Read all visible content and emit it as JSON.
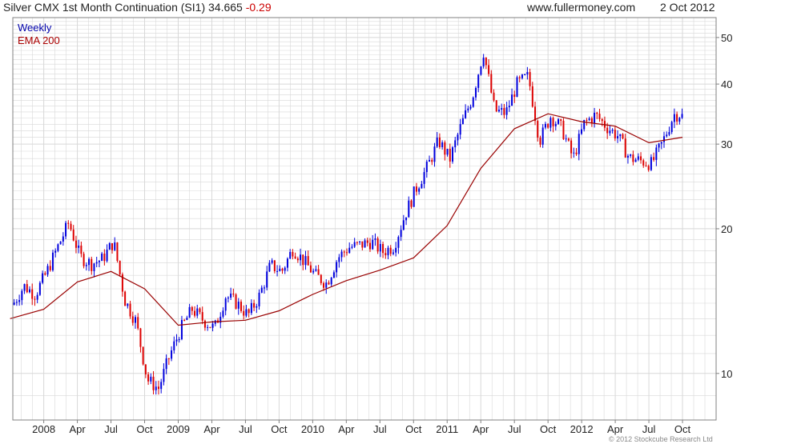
{
  "header": {
    "title": "Silver CMX 1st Month Continuation (SI1) 34.665",
    "change": "-0.29",
    "site": "www.fullermoney.com",
    "date": "2 Oct 2012"
  },
  "legend": {
    "interval": "Weekly",
    "ema": "EMA 200"
  },
  "credit": "© 2012 Stockcube Research Ltd",
  "colors": {
    "up": "#0000dd",
    "down": "#dd0000",
    "ema": "#990000",
    "grid": "#d8d8d8",
    "frame": "#808080"
  },
  "chart_data": {
    "type": "candlestick",
    "interval": "weekly",
    "x_tick_labels": [
      "2008",
      "Apr",
      "Jul",
      "Oct",
      "2009",
      "Apr",
      "Jul",
      "Oct",
      "2010",
      "Apr",
      "Jul",
      "Oct",
      "2011",
      "Apr",
      "Jul",
      "Oct",
      "2012",
      "Apr",
      "Jul",
      "Oct"
    ],
    "x_tick_dates": [
      "2008-01",
      "2008-04",
      "2008-07",
      "2008-10",
      "2009-01",
      "2009-04",
      "2009-07",
      "2009-10",
      "2010-01",
      "2010-04",
      "2010-07",
      "2010-10",
      "2011-01",
      "2011-04",
      "2011-07",
      "2011-10",
      "2012-01",
      "2012-04",
      "2012-07",
      "2012-10"
    ],
    "y_axis": {
      "position": "right",
      "scale": "log",
      "ylim": [
        8,
        55
      ],
      "ticks": [
        10,
        20,
        30,
        40,
        50
      ]
    },
    "grid": true,
    "legend_position": "top-left",
    "close_series": [
      [
        "2007-10",
        13.9
      ],
      [
        "2007-11",
        15.2
      ],
      [
        "2007-12",
        14.6
      ],
      [
        "2008-01",
        16.2
      ],
      [
        "2008-02",
        18.3
      ],
      [
        "2008-03",
        20.6
      ],
      [
        "2008-04",
        17.5
      ],
      [
        "2008-05",
        16.9
      ],
      [
        "2008-06",
        17.3
      ],
      [
        "2008-07",
        18.8
      ],
      [
        "2008-08",
        14.2
      ],
      [
        "2008-09",
        12.8
      ],
      [
        "2008-10",
        9.7
      ],
      [
        "2008-11",
        9.3
      ],
      [
        "2008-12",
        10.9
      ],
      [
        "2009-01",
        12.4
      ],
      [
        "2009-02",
        13.6
      ],
      [
        "2009-03",
        12.9
      ],
      [
        "2009-04",
        12.4
      ],
      [
        "2009-05",
        14.5
      ],
      [
        "2009-06",
        14.0
      ],
      [
        "2009-07",
        13.2
      ],
      [
        "2009-08",
        14.5
      ],
      [
        "2009-09",
        16.8
      ],
      [
        "2009-10",
        16.3
      ],
      [
        "2009-11",
        18.2
      ],
      [
        "2009-12",
        17.1
      ],
      [
        "2010-01",
        16.0
      ],
      [
        "2010-02",
        15.4
      ],
      [
        "2010-03",
        17.4
      ],
      [
        "2010-04",
        18.3
      ],
      [
        "2010-05",
        18.5
      ],
      [
        "2010-06",
        18.8
      ],
      [
        "2010-07",
        17.9
      ],
      [
        "2010-08",
        18.4
      ],
      [
        "2010-09",
        21.4
      ],
      [
        "2010-10",
        24.3
      ],
      [
        "2010-11",
        26.9
      ],
      [
        "2010-12",
        30.5
      ],
      [
        "2011-01",
        27.9
      ],
      [
        "2011-02",
        32.8
      ],
      [
        "2011-03",
        37.5
      ],
      [
        "2011-04",
        46.8
      ],
      [
        "2011-05",
        35.2
      ],
      [
        "2011-06",
        34.8
      ],
      [
        "2011-07",
        40.0
      ],
      [
        "2011-08",
        41.5
      ],
      [
        "2011-09",
        30.5
      ],
      [
        "2011-10",
        34.3
      ],
      [
        "2011-11",
        32.3
      ],
      [
        "2011-12",
        28.0
      ],
      [
        "2012-01",
        33.2
      ],
      [
        "2012-02",
        34.5
      ],
      [
        "2012-03",
        32.6
      ],
      [
        "2012-04",
        31.2
      ],
      [
        "2012-05",
        28.1
      ],
      [
        "2012-06",
        27.7
      ],
      [
        "2012-07",
        27.3
      ],
      [
        "2012-08",
        30.3
      ],
      [
        "2012-09",
        34.6
      ],
      [
        "2012-10",
        34.665
      ]
    ],
    "ema_200": [
      [
        "2007-10",
        13.0
      ],
      [
        "2008-01",
        13.6
      ],
      [
        "2008-04",
        15.5
      ],
      [
        "2008-07",
        16.3
      ],
      [
        "2008-10",
        15.0
      ],
      [
        "2009-01",
        12.6
      ],
      [
        "2009-04",
        12.8
      ],
      [
        "2009-07",
        12.9
      ],
      [
        "2009-10",
        13.5
      ],
      [
        "2010-01",
        14.6
      ],
      [
        "2010-04",
        15.6
      ],
      [
        "2010-07",
        16.4
      ],
      [
        "2010-10",
        17.4
      ],
      [
        "2011-01",
        20.3
      ],
      [
        "2011-04",
        26.7
      ],
      [
        "2011-07",
        32.3
      ],
      [
        "2011-10",
        34.7
      ],
      [
        "2012-01",
        33.4
      ],
      [
        "2012-04",
        32.7
      ],
      [
        "2012-07",
        30.2
      ],
      [
        "2012-10",
        31.0
      ]
    ]
  }
}
